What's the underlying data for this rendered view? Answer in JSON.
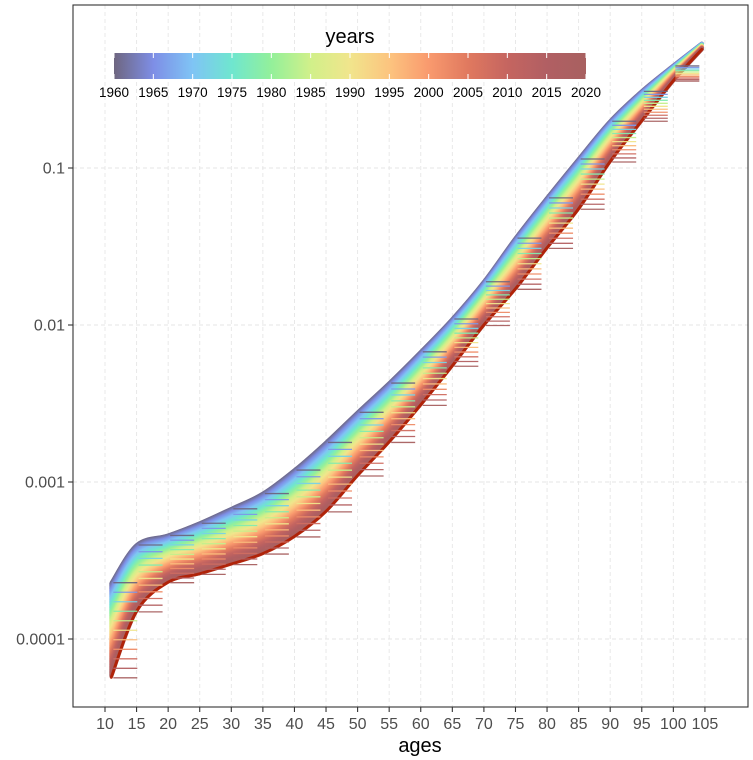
{
  "chart_data": {
    "type": "line",
    "title": "",
    "xlabel": "ages",
    "ylabel": "",
    "y_scale": "log10",
    "xlim": [
      8,
      107
    ],
    "ylim": [
      4e-05,
      1
    ],
    "x_ticks": [
      10,
      15,
      20,
      25,
      30,
      35,
      40,
      45,
      50,
      55,
      60,
      65,
      70,
      75,
      80,
      85,
      90,
      95,
      100,
      105
    ],
    "x_tick_labels": [
      "10",
      "15",
      "20",
      "25",
      "30",
      "35",
      "40",
      "45",
      "50",
      "55",
      "60",
      "65",
      "70",
      "75",
      "80",
      "85",
      "90",
      "95",
      "100",
      "105"
    ],
    "y_ticks": [
      0.0001,
      0.001,
      0.01,
      0.1
    ],
    "y_tick_labels": [
      "0.0001",
      "0.001",
      "0.01",
      "0.1"
    ],
    "grid": true,
    "legend": {
      "title": "years",
      "placement": "top-left",
      "labels": [
        "1960",
        "1965",
        "1970",
        "1975",
        "1980",
        "1985",
        "1990",
        "1995",
        "2000",
        "2005",
        "2010",
        "2015",
        "2020"
      ],
      "colors": [
        "#6e6680",
        "#7e8ee6",
        "#7fc4f5",
        "#6fe6cf",
        "#93f09a",
        "#d1f08a",
        "#f1e58c",
        "#fcc47f",
        "#f99a6e",
        "#e0795f",
        "#c56560",
        "#b15f63",
        "#a86060"
      ]
    },
    "series_range": {
      "first_year": 1960,
      "last_year": 2020,
      "step": 1
    },
    "ages": [
      11,
      15,
      20,
      25,
      30,
      35,
      40,
      45,
      50,
      55,
      60,
      65,
      70,
      75,
      80,
      85,
      90,
      95,
      100,
      104.5
    ],
    "upper_1960": [
      0.00023,
      0.0004,
      0.00046,
      0.00055,
      0.00068,
      0.00085,
      0.0012,
      0.0018,
      0.0028,
      0.0043,
      0.0068,
      0.011,
      0.019,
      0.036,
      0.065,
      0.115,
      0.2,
      0.31,
      0.45,
      0.62
    ],
    "lower_2020": [
      5.7e-05,
      0.00015,
      0.00023,
      0.00026,
      0.0003,
      0.00035,
      0.00045,
      0.00065,
      0.0011,
      0.0018,
      0.0031,
      0.0055,
      0.01,
      0.017,
      0.031,
      0.055,
      0.11,
      0.2,
      0.36,
      0.57
    ]
  }
}
